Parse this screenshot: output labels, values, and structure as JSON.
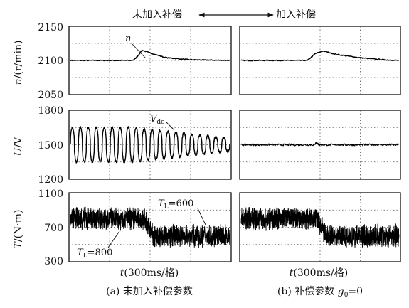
{
  "header": {
    "left_label": "未加入补偿",
    "right_label": "加入补偿"
  },
  "captions": {
    "left": "(a)  未加入补偿参数",
    "right_prefix": "(b)  补偿参数 ",
    "right_var": "g",
    "right_sub": "0",
    "right_suffix": "=0"
  },
  "xlabel": {
    "var": "t",
    "unit": "(300ms/格)"
  },
  "chart_data": [
    {
      "type": "line",
      "panel": "speed",
      "ylabel_var": "n",
      "ylabel_unit": "/(r/min)",
      "ylim": [
        2050,
        2150
      ],
      "yticks": [
        "2150",
        "2100",
        "2050"
      ],
      "annotations": [
        {
          "text": "n"
        }
      ],
      "series_left": {
        "description_points": [
          [
            0,
            2100
          ],
          [
            0.38,
            2100
          ],
          [
            0.4,
            2101
          ],
          [
            0.42,
            2106
          ],
          [
            0.45,
            2115
          ],
          [
            0.5,
            2111
          ],
          [
            0.6,
            2104
          ],
          [
            0.75,
            2101
          ],
          [
            1.0,
            2100
          ]
        ]
      },
      "series_right": {
        "description_points": [
          [
            0,
            2100
          ],
          [
            0.42,
            2100
          ],
          [
            0.47,
            2110
          ],
          [
            0.52,
            2114
          ],
          [
            0.6,
            2109
          ],
          [
            0.75,
            2104
          ],
          [
            0.9,
            2101
          ],
          [
            1.0,
            2100
          ]
        ]
      }
    },
    {
      "type": "line",
      "panel": "dc-voltage",
      "ylabel_var": "U",
      "ylabel_unit": "/V",
      "ylim": [
        1200,
        1800
      ],
      "yticks": [
        "1800",
        "1500",
        "1200"
      ],
      "annotations": [
        {
          "text": "V",
          "sub": "dc"
        }
      ],
      "series_left": {
        "center": 1500,
        "amplitude_start": 150,
        "amplitude_end": 55,
        "cycles": 20
      },
      "series_right": {
        "center": 1500,
        "amplitude": 8,
        "bump_at": 0.48
      }
    },
    {
      "type": "line",
      "panel": "torque",
      "ylabel_var": "T",
      "ylabel_unit": "/(N·m)",
      "ylim": [
        300,
        1100
      ],
      "yticks": [
        "1100",
        "700",
        "300"
      ],
      "annotations": [
        {
          "text": "T",
          "sub": "L",
          "suffix": "=600"
        },
        {
          "text": "T",
          "sub": "L",
          "suffix": "=800"
        }
      ],
      "series_left": {
        "levels": [
          [
            0,
            0.46,
            800
          ],
          [
            0.52,
            1.0,
            600
          ]
        ],
        "noise": 110
      },
      "series_right": {
        "levels": [
          [
            0,
            0.48,
            800
          ],
          [
            0.54,
            1.0,
            600
          ]
        ],
        "noise": 110
      }
    }
  ]
}
